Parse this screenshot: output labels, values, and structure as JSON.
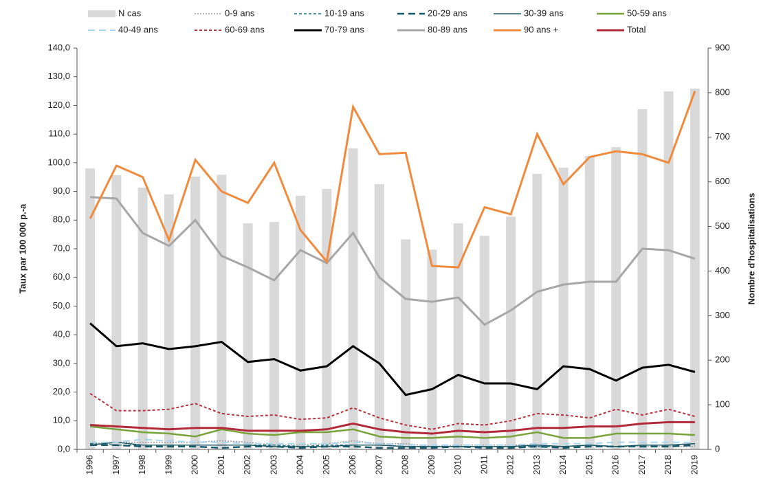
{
  "chart_data": {
    "type": "bar_line",
    "y_label": "Taux  par  100 000 p.-a",
    "y2_label": "Nombre d'hospitalisations",
    "categories": [
      "1996",
      "1997",
      "1998",
      "1999",
      "2000",
      "2001",
      "2002",
      "2003",
      "2004",
      "2005",
      "2006",
      "2007",
      "2008",
      "2009",
      "2010",
      "2011",
      "2012",
      "2013",
      "2014",
      "2015",
      "2016",
      "2017",
      "2018",
      "2019"
    ],
    "ylim": [
      0,
      140
    ],
    "yticks": [
      {
        "value": 0,
        "label": "0,0"
      },
      {
        "value": 10,
        "label": "10,0"
      },
      {
        "value": 20,
        "label": "20,0"
      },
      {
        "value": 30,
        "label": "30,0"
      },
      {
        "value": 40,
        "label": "40,0"
      },
      {
        "value": 50,
        "label": "50,0"
      },
      {
        "value": 60,
        "label": "60,0"
      },
      {
        "value": 70,
        "label": "70,0"
      },
      {
        "value": 80,
        "label": "80,0"
      },
      {
        "value": 90,
        "label": "90,0"
      },
      {
        "value": 100,
        "label": "100,0"
      },
      {
        "value": 110,
        "label": "110,0"
      },
      {
        "value": 120,
        "label": "120,0"
      },
      {
        "value": 130,
        "label": "130,0"
      },
      {
        "value": 140,
        "label": "140,0"
      }
    ],
    "y2lim": [
      0,
      900
    ],
    "y2ticks": [
      0,
      100,
      200,
      300,
      400,
      500,
      600,
      700,
      800,
      900
    ],
    "legend": "top",
    "series": [
      {
        "name": "N cas",
        "type": "bar",
        "axis": "y2",
        "color": "#d9d9d9",
        "values": [
          630,
          615,
          587,
          572,
          612,
          616,
          507,
          510,
          569,
          584,
          675,
          595,
          471,
          448,
          507,
          479,
          522,
          618,
          632,
          658,
          678,
          763,
          803,
          809
        ]
      },
      {
        "name": "0-9 ans",
        "type": "line",
        "dash": "dotted",
        "width": 1.5,
        "color": "#9a9a9a",
        "values": [
          2,
          2.5,
          2.5,
          2.5,
          2.5,
          3,
          2.5,
          1.5,
          1.5,
          2,
          3,
          2,
          2,
          1,
          1.5,
          1.5,
          1.5,
          1.5,
          1,
          1.5,
          1,
          1,
          1,
          1
        ]
      },
      {
        "name": "10-19 ans",
        "type": "line",
        "dash": "dash",
        "width": 1.5,
        "color": "#1f6b7a",
        "values": [
          2,
          1.5,
          1.5,
          1.5,
          1.5,
          1.5,
          1.5,
          1.5,
          1,
          1.5,
          1.5,
          1.5,
          1,
          1,
          1,
          1,
          1,
          1,
          1,
          1.5,
          1,
          1.5,
          1.5,
          2
        ]
      },
      {
        "name": "20-29 ans",
        "type": "line",
        "dash": "longdash",
        "width": 2.5,
        "color": "#17596a",
        "values": [
          1.5,
          1.5,
          1,
          1,
          1,
          0.5,
          1,
          1,
          0.5,
          1,
          1,
          0.5,
          0.5,
          0.5,
          1,
          0.5,
          0.5,
          1,
          0.5,
          1,
          1,
          1,
          1,
          1.5
        ]
      },
      {
        "name": "30-39 ans",
        "type": "line",
        "dash": "solid",
        "width": 1.5,
        "color": "#1e5a66",
        "values": [
          1.5,
          2.5,
          1.5,
          1.5,
          1.5,
          1.5,
          1.5,
          1,
          1,
          1,
          1.5,
          1.5,
          1,
          1,
          1,
          1,
          1,
          1.5,
          1,
          1.5,
          1,
          1.5,
          1.5,
          2
        ]
      },
      {
        "name": "50-59 ans",
        "type": "line",
        "dash": "solid",
        "width": 2.5,
        "color": "#77a33a",
        "values": [
          8,
          7,
          6,
          5.5,
          4.5,
          7,
          5.5,
          5,
          6,
          6,
          7,
          4.5,
          4,
          4,
          4.5,
          4,
          4.5,
          6,
          4,
          4,
          5.5,
          5.5,
          5.5,
          5
        ]
      },
      {
        "name": "40-49 ans",
        "type": "line",
        "dash": "longdash",
        "width": 2,
        "color": "#a8d4ec",
        "values": [
          2.5,
          2.5,
          3.5,
          3,
          2.5,
          2.5,
          2,
          2,
          2,
          2,
          2.5,
          2,
          1.5,
          1.5,
          1.5,
          1.5,
          1.5,
          2,
          2,
          2,
          2.5,
          2.5,
          2.5,
          2.5
        ]
      },
      {
        "name": "60-69 ans",
        "type": "line",
        "dash": "dash",
        "width": 2,
        "color": "#b5323e",
        "values": [
          19.5,
          13.5,
          13.5,
          14,
          16,
          12.5,
          11.5,
          12,
          10.5,
          11,
          14.5,
          11,
          8.5,
          7,
          9,
          8.5,
          10,
          12.5,
          12,
          11,
          14,
          12,
          14,
          11.5
        ]
      },
      {
        "name": "70-79 ans",
        "type": "line",
        "dash": "solid",
        "width": 3,
        "color": "#000000",
        "values": [
          44,
          36,
          37,
          35,
          36,
          37.5,
          30.5,
          31.5,
          27.5,
          29,
          36,
          30,
          19,
          21,
          26,
          23,
          23,
          21,
          29,
          28,
          24,
          28.5,
          29.5,
          27
        ]
      },
      {
        "name": "80-89 ans",
        "type": "line",
        "dash": "solid",
        "width": 3,
        "color": "#a6a6a6",
        "values": [
          88,
          87.5,
          75.5,
          71,
          80,
          67.5,
          63.5,
          59,
          69.5,
          65,
          75.5,
          60,
          52.5,
          51.5,
          53,
          43.5,
          48.5,
          55,
          57.5,
          58.5,
          58.5,
          70,
          69.5,
          66.5
        ]
      },
      {
        "name": "90 ans +",
        "type": "line",
        "dash": "solid",
        "width": 3,
        "color": "#f08a3c",
        "values": [
          80.5,
          99,
          95,
          73,
          101,
          90,
          86,
          100,
          76.5,
          65.5,
          119.5,
          103,
          103.5,
          64,
          63.5,
          84.5,
          82,
          110,
          92.5,
          102,
          104,
          103,
          100,
          125
        ]
      },
      {
        "name": "Total",
        "type": "line",
        "dash": "solid",
        "width": 3,
        "color": "#b22a3a",
        "values": [
          8.5,
          8,
          7.5,
          7,
          7.5,
          7.5,
          6.5,
          6.5,
          6.5,
          7,
          9,
          7,
          6,
          5.5,
          6.5,
          6,
          6.5,
          7.5,
          7.5,
          8,
          8,
          9,
          9.5,
          9.5
        ]
      }
    ]
  }
}
